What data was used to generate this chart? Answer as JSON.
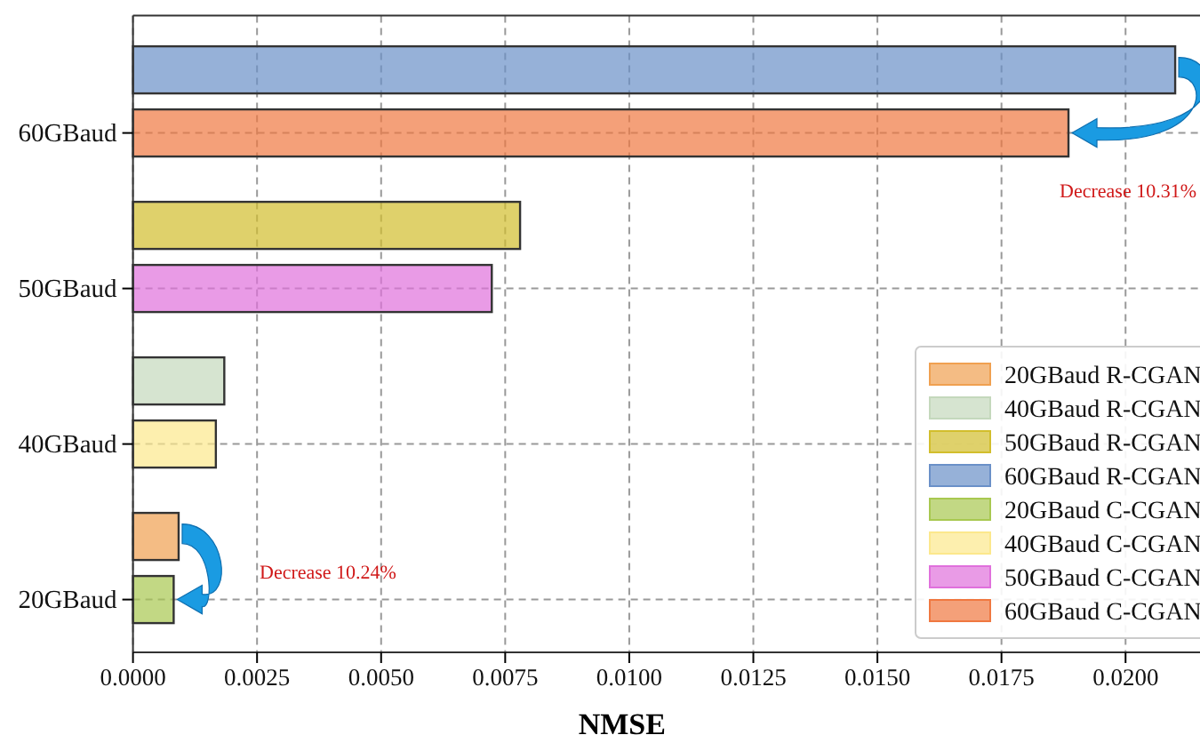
{
  "chart_data": {
    "type": "bar",
    "orientation": "horizontal",
    "xlabel": "NMSE",
    "categories": [
      "60GBaud",
      "50GBaud",
      "40GBaud",
      "20GBaud"
    ],
    "series": [
      {
        "name": "20GBaud R-CGAN",
        "color": "#f0a050",
        "values": [
          null,
          null,
          null,
          0.00092
        ]
      },
      {
        "name": "40GBaud R-CGAN",
        "color": "#c4d8bc",
        "values": [
          null,
          null,
          0.00184,
          null
        ]
      },
      {
        "name": "50GBaud R-CGAN",
        "color": "#d2be2c",
        "values": [
          null,
          0.0078,
          null,
          null
        ]
      },
      {
        "name": "60GBaud R-CGAN",
        "color": "#6a90c8",
        "values": [
          0.021,
          null,
          null,
          null
        ]
      },
      {
        "name": "20GBaud C-CGAN",
        "color": "#a8c850",
        "values": [
          null,
          null,
          null,
          0.00082
        ]
      },
      {
        "name": "40GBaud C-CGAN",
        "color": "#fce88c",
        "values": [
          null,
          null,
          0.00167,
          null
        ]
      },
      {
        "name": "50GBaud C-CGAN",
        "color": "#e070dc",
        "values": [
          null,
          0.00723,
          null,
          null
        ]
      },
      {
        "name": "60GBaud C-CGAN",
        "color": "#f07840",
        "values": [
          0.01885,
          null,
          null,
          null
        ]
      }
    ],
    "xlim": [
      0,
      0.0215
    ],
    "xticks": [
      {
        "value": 0,
        "label": "0.0000"
      },
      {
        "value": 0.0025,
        "label": "0.0025"
      },
      {
        "value": 0.005,
        "label": "0.0050"
      },
      {
        "value": 0.0075,
        "label": "0.0075"
      },
      {
        "value": 0.01,
        "label": "0.0100"
      },
      {
        "value": 0.0125,
        "label": "0.0125"
      },
      {
        "value": 0.015,
        "label": "0.0150"
      },
      {
        "value": 0.0175,
        "label": "0.0175"
      },
      {
        "value": 0.02,
        "label": "0.0200"
      }
    ],
    "annotations": [
      "Decrease 10.31%",
      "Decrease 10.24%"
    ],
    "grid": true,
    "legend": "bottom right"
  }
}
